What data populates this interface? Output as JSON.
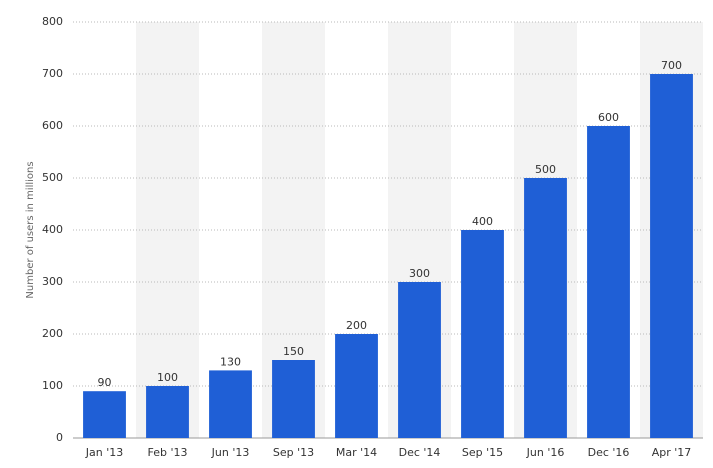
{
  "chart_data": {
    "type": "bar",
    "y_label": "Number of users in millions",
    "categories": [
      "Jan '13",
      "Feb '13",
      "Jun '13",
      "Sep '13",
      "Mar '14",
      "Dec '14",
      "Sep '15",
      "Jun '16",
      "Dec '16",
      "Apr '17"
    ],
    "values": [
      90,
      100,
      130,
      150,
      200,
      300,
      400,
      500,
      600,
      700
    ],
    "color": "#1f5fd6",
    "ylim": [
      0,
      800
    ],
    "yticks": [
      0,
      100,
      200,
      300,
      400,
      500,
      600,
      700,
      800
    ],
    "grid": true
  }
}
